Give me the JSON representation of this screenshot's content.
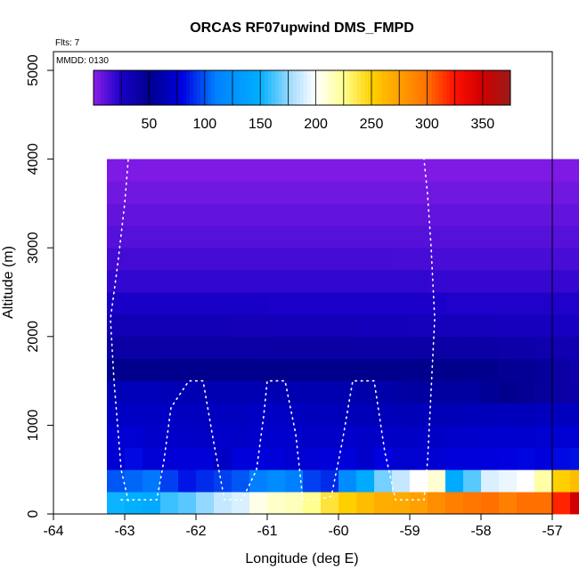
{
  "chart_data": {
    "type": "heatmap",
    "title": "ORCAS RF07upwind DMS_FMPD",
    "xlabel": "Longitude (deg E)",
    "ylabel": "Altitude (m)",
    "xlim": [
      -64,
      -57
    ],
    "ylim": [
      0,
      5200
    ],
    "x_ticks": [
      -64,
      -63,
      -62,
      -61,
      -60,
      -59,
      -58,
      -57
    ],
    "y_ticks": [
      0,
      1000,
      2000,
      3000,
      4000,
      5000
    ],
    "annotations": {
      "flights": "Flts: 7",
      "date": "MMDD: 0130"
    },
    "colorbar": {
      "range": [
        0,
        375
      ],
      "ticks": [
        50,
        100,
        150,
        200,
        250,
        300,
        350
      ],
      "stops": [
        {
          "v": 0,
          "c": "#8b1ee8"
        },
        {
          "v": 25,
          "c": "#1a00c8"
        },
        {
          "v": 50,
          "c": "#00008c"
        },
        {
          "v": 80,
          "c": "#0000e0"
        },
        {
          "v": 110,
          "c": "#0080ff"
        },
        {
          "v": 150,
          "c": "#00b0ff"
        },
        {
          "v": 180,
          "c": "#b0e0ff"
        },
        {
          "v": 200,
          "c": "#ffffff"
        },
        {
          "v": 225,
          "c": "#ffff90"
        },
        {
          "v": 250,
          "c": "#ffd000"
        },
        {
          "v": 275,
          "c": "#ffa000"
        },
        {
          "v": 300,
          "c": "#ff7000"
        },
        {
          "v": 325,
          "c": "#ff1000"
        },
        {
          "v": 350,
          "c": "#d00000"
        },
        {
          "v": 375,
          "c": "#9b1a1a"
        }
      ]
    },
    "grid": {
      "x_start": -63.25,
      "x_step": 0.25,
      "y_edges": [
        0,
        250,
        500,
        750,
        1000,
        1250,
        1500,
        1750,
        2000,
        2250,
        2500,
        2750,
        3000,
        3250,
        3500,
        3750,
        4000
      ],
      "rows": [
        [
          152,
          150,
          145,
          160,
          165,
          175,
          185,
          190,
          205,
          212,
          215,
          225,
          240,
          250,
          260,
          268,
          270,
          275,
          285,
          292,
          297,
          300,
          292,
          300,
          300,
          320,
          350,
          375
        ],
        [
          100,
          104,
          108,
          95,
          85,
          90,
          95,
          100,
          110,
          120,
          110,
          95,
          90,
          120,
          145,
          170,
          185,
          200,
          210,
          145,
          165,
          190,
          195,
          200,
          220,
          250,
          260,
          270
        ],
        [
          75,
          82,
          76,
          76,
          77,
          77,
          70,
          77,
          78,
          77,
          74,
          76,
          77,
          77,
          72,
          80,
          74,
          74,
          75,
          77,
          78,
          79,
          80,
          81,
          79,
          82,
          84,
          98
        ],
        [
          75,
          75,
          72,
          72,
          71,
          71,
          72,
          71,
          72,
          73,
          73,
          71,
          71,
          72,
          71,
          71,
          70,
          71,
          70,
          72,
          72,
          73,
          73,
          73,
          74,
          75,
          76,
          78
        ],
        [
          70,
          70,
          70,
          70,
          68,
          68,
          68,
          69,
          70,
          70,
          69,
          67,
          67,
          66,
          66,
          66,
          65,
          66,
          65,
          65,
          66,
          66,
          67,
          66,
          68,
          68,
          68,
          70
        ],
        [
          65,
          66,
          66,
          65,
          64,
          64,
          64,
          64,
          64,
          64,
          63,
          63,
          62,
          62,
          61,
          61,
          59,
          58,
          57,
          57,
          57,
          54,
          50,
          47,
          43,
          40,
          38,
          36
        ],
        [
          50,
          50,
          50,
          50,
          50,
          50,
          50,
          50,
          50,
          50,
          50,
          50,
          50,
          50,
          50,
          50,
          50,
          50,
          50,
          50,
          49,
          49,
          47,
          46,
          44,
          40,
          37,
          34
        ],
        [
          40,
          40,
          40,
          39,
          39,
          39,
          39,
          39,
          39,
          40,
          40,
          40,
          40,
          40,
          40,
          40,
          40,
          40,
          40,
          40,
          39,
          39,
          38,
          38,
          37,
          35,
          34,
          32
        ],
        [
          33,
          33,
          33,
          33,
          33,
          33,
          33,
          32,
          32,
          32,
          32,
          32,
          32,
          32,
          31,
          31,
          31,
          30,
          30,
          30,
          30,
          30,
          29,
          29,
          29,
          28,
          28,
          27
        ],
        [
          26,
          26,
          26,
          26,
          26,
          26,
          26,
          26,
          26,
          25,
          25,
          25,
          25,
          25,
          25,
          25,
          25,
          25,
          25,
          24,
          24,
          24,
          24,
          24,
          24,
          24,
          24,
          23
        ],
        [
          20,
          20,
          20,
          20,
          20,
          20,
          20,
          20,
          20,
          20,
          20,
          20,
          20,
          20,
          20,
          20,
          20,
          20,
          19,
          19,
          19,
          19,
          19,
          19,
          19,
          19,
          19,
          19
        ],
        [
          16,
          16,
          16,
          16,
          16,
          16,
          16,
          16,
          16,
          16,
          16,
          16,
          16,
          16,
          16,
          16,
          15,
          15,
          15,
          15,
          15,
          15,
          15,
          15,
          15,
          15,
          15,
          15
        ],
        [
          12,
          12,
          12,
          12,
          12,
          12,
          12,
          12,
          12,
          12,
          12,
          12,
          12,
          12,
          12,
          12,
          12,
          12,
          12,
          12,
          12,
          12,
          12,
          12,
          12,
          12,
          12,
          12
        ],
        [
          9,
          9,
          9,
          9,
          9,
          9,
          9,
          9,
          9,
          9,
          9,
          9,
          9,
          9,
          9,
          9,
          9,
          9,
          9,
          9,
          9,
          9,
          9,
          9,
          9,
          9,
          9,
          9
        ],
        [
          6,
          6,
          6,
          6,
          6,
          6,
          6,
          6,
          6,
          6,
          6,
          6,
          6,
          6,
          6,
          6,
          6,
          6,
          6,
          6,
          6,
          6,
          6,
          6,
          6,
          6,
          6,
          6
        ],
        [
          3,
          3,
          3,
          3,
          3,
          3,
          3,
          3,
          3,
          3,
          3,
          3,
          3,
          3,
          3,
          3,
          3,
          3,
          3,
          3,
          3,
          3,
          3,
          3,
          3,
          3,
          3,
          3
        ]
      ]
    },
    "flight_tracks": [
      {
        "name": "sawtooth-outer",
        "lon": [
          -62.95,
          -63.05,
          -63.1,
          -63.15,
          -63.2,
          -63.1,
          -63.0,
          -62.95
        ],
        "alt": [
          150,
          500,
          1000,
          1500,
          2200,
          2800,
          3500,
          4000
        ]
      },
      {
        "name": "legs",
        "lon": [
          -63.05,
          -62.55,
          -62.45,
          -62.35,
          -62.1,
          -61.9,
          -61.75,
          -61.6,
          -61.35,
          -61.15,
          -61.05,
          -61.0,
          -60.75,
          -60.6,
          -60.5,
          -60.3,
          -60.1,
          -59.95,
          -59.8,
          -59.5,
          -59.35,
          -59.2,
          -58.8,
          -58.75,
          -58.7,
          -58.65,
          -58.7,
          -58.75,
          -58.8
        ],
        "alt": [
          160,
          160,
          600,
          1200,
          1500,
          1500,
          800,
          160,
          160,
          500,
          1100,
          1500,
          1500,
          900,
          160,
          160,
          200,
          800,
          1500,
          1500,
          700,
          160,
          160,
          600,
          1400,
          2200,
          3000,
          3600,
          4000
        ]
      }
    ]
  }
}
